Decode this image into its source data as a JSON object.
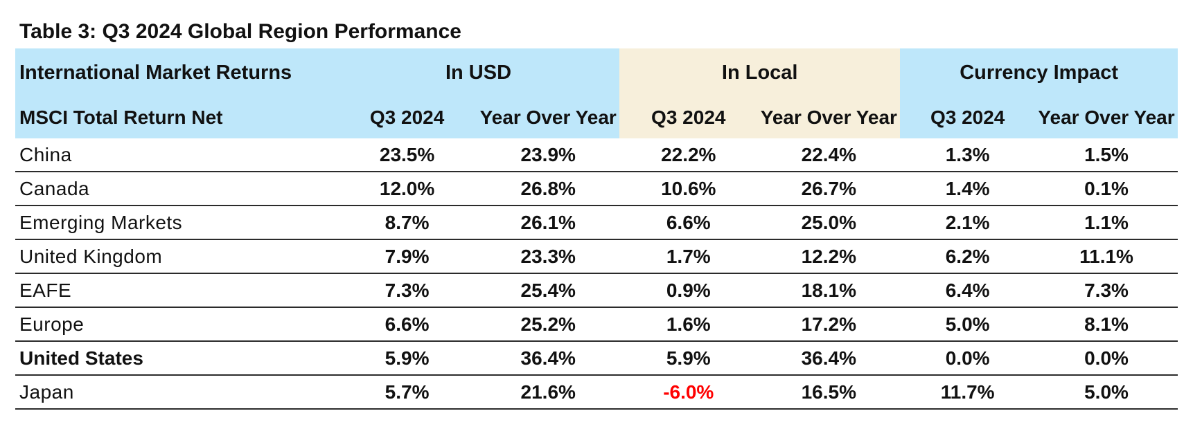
{
  "title": "Table 3: Q3 2024 Global Region Performance",
  "header": {
    "col0_group": "International Market Returns",
    "group_usd": "In USD",
    "group_local": "In Local",
    "group_currency": "Currency Impact",
    "col0_sub": "MSCI Total Return Net",
    "sub_q3": "Q3 2024",
    "sub_yoy": "Year Over Year"
  },
  "colors": {
    "blue_header": "#bee7fa",
    "tan_header": "#f7efdb",
    "negative": "#ff0000"
  },
  "rows": [
    {
      "region": "China",
      "bold": false,
      "usd_q3": "23.5%",
      "usd_yoy": "23.9%",
      "local_q3": "22.2%",
      "local_yoy": "22.4%",
      "cur_q3": "1.3%",
      "cur_yoy": "1.5%"
    },
    {
      "region": "Canada",
      "bold": false,
      "usd_q3": "12.0%",
      "usd_yoy": "26.8%",
      "local_q3": "10.6%",
      "local_yoy": "26.7%",
      "cur_q3": "1.4%",
      "cur_yoy": "0.1%"
    },
    {
      "region": "Emerging Markets",
      "bold": false,
      "usd_q3": "8.7%",
      "usd_yoy": "26.1%",
      "local_q3": "6.6%",
      "local_yoy": "25.0%",
      "cur_q3": "2.1%",
      "cur_yoy": "1.1%"
    },
    {
      "region": "United Kingdom",
      "bold": false,
      "usd_q3": "7.9%",
      "usd_yoy": "23.3%",
      "local_q3": "1.7%",
      "local_yoy": "12.2%",
      "cur_q3": "6.2%",
      "cur_yoy": "11.1%"
    },
    {
      "region": "EAFE",
      "bold": false,
      "usd_q3": "7.3%",
      "usd_yoy": "25.4%",
      "local_q3": "0.9%",
      "local_yoy": "18.1%",
      "cur_q3": "6.4%",
      "cur_yoy": "7.3%"
    },
    {
      "region": "Europe",
      "bold": false,
      "usd_q3": "6.6%",
      "usd_yoy": "25.2%",
      "local_q3": "1.6%",
      "local_yoy": "17.2%",
      "cur_q3": "5.0%",
      "cur_yoy": "8.1%"
    },
    {
      "region": "United States",
      "bold": true,
      "usd_q3": "5.9%",
      "usd_yoy": "36.4%",
      "local_q3": "5.9%",
      "local_yoy": "36.4%",
      "cur_q3": "0.0%",
      "cur_yoy": "0.0%"
    },
    {
      "region": "Japan",
      "bold": false,
      "usd_q3": "5.7%",
      "usd_yoy": "21.6%",
      "local_q3": "-6.0%",
      "local_yoy": "16.5%",
      "cur_q3": "11.7%",
      "cur_yoy": "5.0%"
    }
  ]
}
